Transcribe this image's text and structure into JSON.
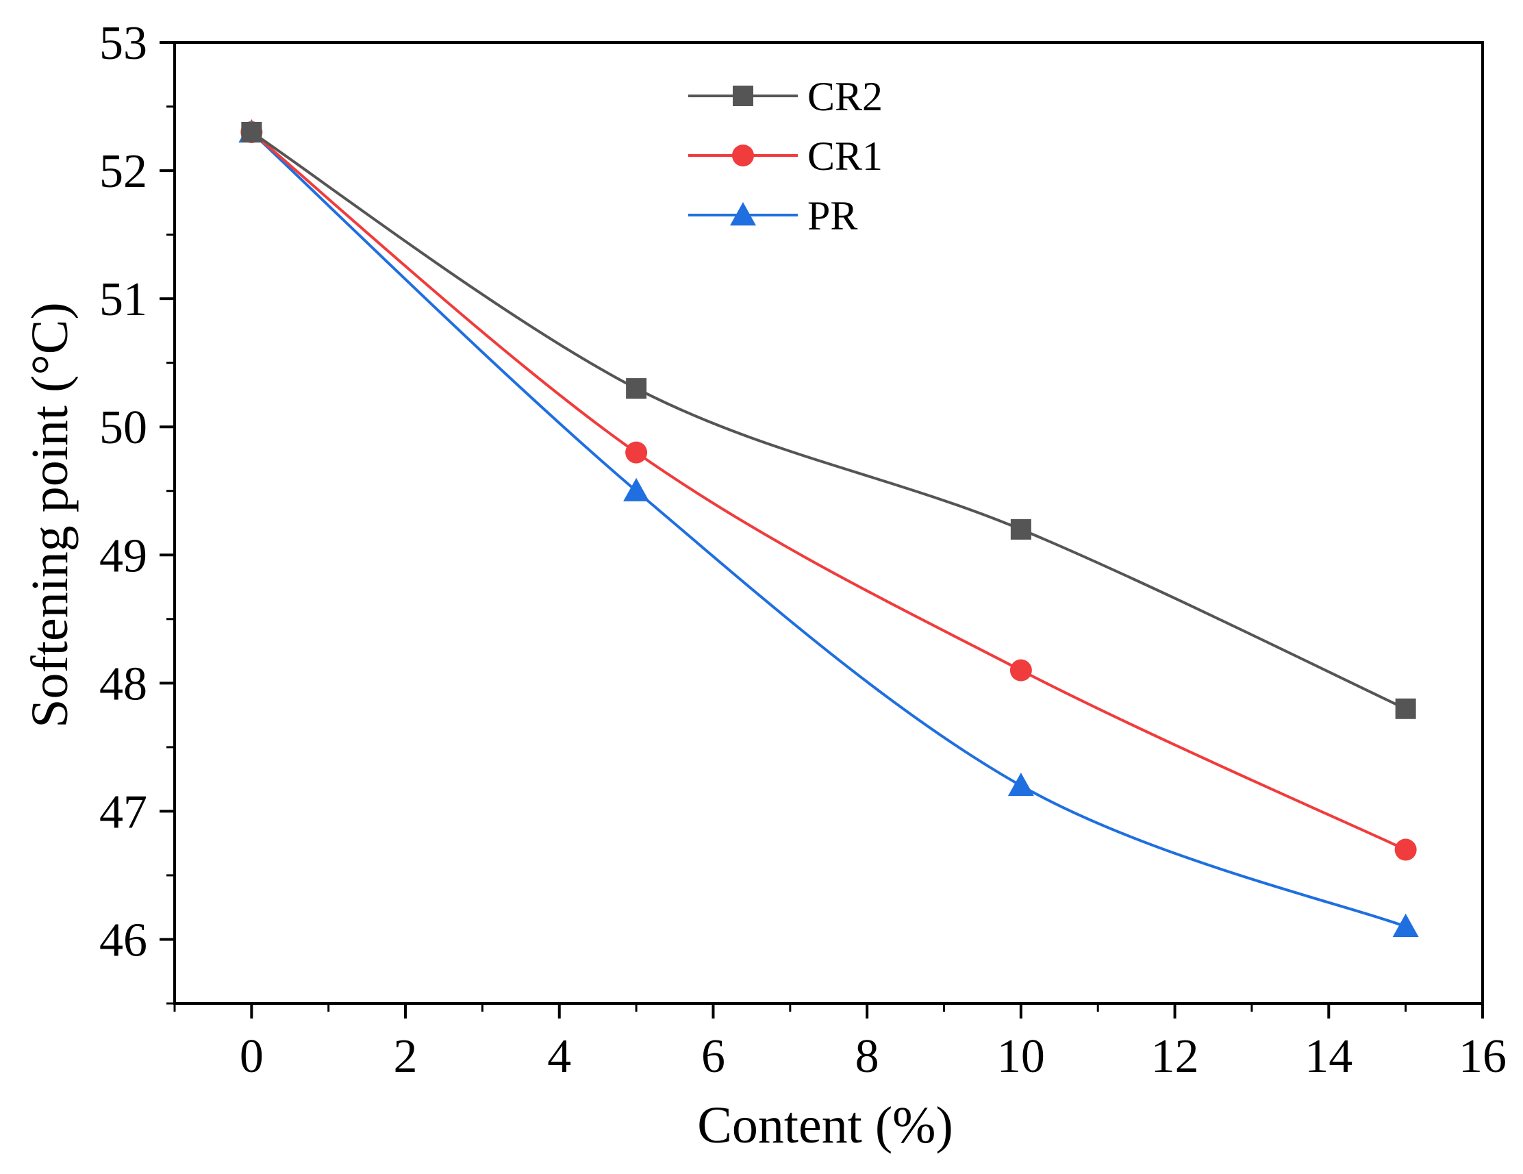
{
  "chart_data": {
    "type": "line",
    "title": "",
    "xlabel": "Content (%)",
    "ylabel": "Softening point (°C)",
    "xlim": [
      -1,
      16
    ],
    "ylim": [
      45.5,
      53
    ],
    "xticks": [
      0,
      2,
      4,
      6,
      8,
      10,
      12,
      14,
      16
    ],
    "yticks": [
      46,
      47,
      48,
      49,
      50,
      51,
      52,
      53
    ],
    "x": [
      0,
      5,
      10,
      15
    ],
    "legend_position": "top-center",
    "grid": false,
    "series": [
      {
        "name": "CR2",
        "values": [
          52.3,
          50.3,
          49.2,
          47.8
        ],
        "color": "#555555",
        "marker": "square"
      },
      {
        "name": "CR1",
        "values": [
          52.3,
          49.8,
          48.1,
          46.7
        ],
        "color": "#f03c3c",
        "marker": "circle"
      },
      {
        "name": "PR",
        "values": [
          52.3,
          49.5,
          47.2,
          46.1
        ],
        "color": "#1f6fe0",
        "marker": "triangle"
      }
    ]
  }
}
